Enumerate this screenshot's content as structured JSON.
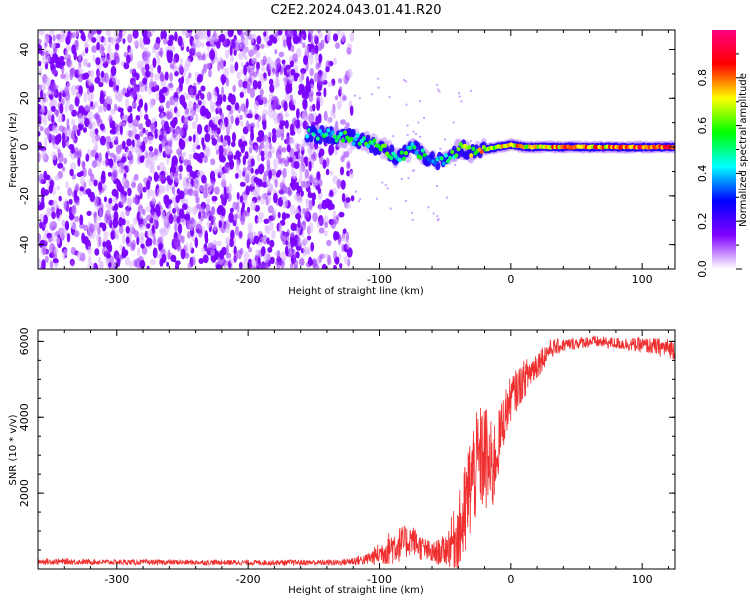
{
  "title": "C2E2.2024.043.01.41.R20",
  "chart_data": [
    {
      "type": "heatmap",
      "xlabel": "Height of straight line (km)",
      "ylabel": "Frequency (Hz)",
      "xlim": [
        -360,
        125
      ],
      "ylim": [
        -50,
        48
      ],
      "x_ticks": [
        -300,
        -200,
        -100,
        0,
        100
      ],
      "x_tick_labels": [
        "-300",
        "-200",
        "-100",
        "0",
        "100"
      ],
      "y_ticks": [
        -40,
        -20,
        0,
        20,
        40
      ],
      "y_tick_labels": [
        "-40",
        "-20",
        "0",
        "20",
        "40"
      ],
      "noise_region_x": [
        -360,
        -120
      ],
      "ridge": {
        "x": [
          -155,
          -140,
          -125,
          -110,
          -95,
          -85,
          -75,
          -65,
          -55,
          -45,
          -38,
          -30,
          -20,
          -10,
          0,
          10,
          30,
          50,
          70,
          90,
          110,
          125
        ],
        "y": [
          5,
          5,
          4,
          2,
          -1,
          -5,
          0,
          -4,
          -6,
          -4,
          0,
          -2,
          -1,
          0,
          1,
          0,
          0,
          0,
          0,
          0,
          0,
          0
        ],
        "amplitude": [
          0.4,
          0.45,
          0.5,
          0.5,
          0.55,
          0.5,
          0.5,
          0.45,
          0.4,
          0.5,
          0.6,
          0.65,
          0.7,
          0.7,
          0.75,
          0.7,
          0.75,
          0.8,
          0.75,
          0.8,
          0.85,
          0.8
        ]
      },
      "colorbar": {
        "label": "Normalized spectral amplitude",
        "range": [
          0,
          1
        ],
        "ticks": [
          0.0,
          0.2,
          0.4,
          0.6,
          0.8
        ],
        "tick_labels": [
          "0.0",
          "0.2",
          "0.4",
          "0.6",
          "0.8"
        ],
        "colors": [
          "#ffffff",
          "#8000ff",
          "#0000ff",
          "#00ffff",
          "#00ff00",
          "#ffff00",
          "#ff0000",
          "#ff0080"
        ]
      }
    },
    {
      "type": "line",
      "xlabel": "Height of straight line (km)",
      "ylabel": "SNR (10 * v/v)",
      "xlim": [
        -360,
        125
      ],
      "ylim": [
        0,
        6300
      ],
      "x_ticks": [
        -300,
        -200,
        -100,
        0,
        100
      ],
      "x_tick_labels": [
        "-300",
        "-200",
        "-100",
        "0",
        "100"
      ],
      "y_ticks": [
        2000,
        4000,
        6000
      ],
      "y_tick_labels": [
        "2000",
        "4000",
        "6000"
      ],
      "series_color": "#f03030",
      "envelope": {
        "x": [
          -360,
          -300,
          -200,
          -130,
          -110,
          -100,
          -90,
          -80,
          -75,
          -70,
          -60,
          -50,
          -45,
          -40,
          -35,
          -30,
          -25,
          -20,
          -15,
          -10,
          -5,
          0,
          10,
          20,
          30,
          40,
          50,
          60,
          80,
          100,
          125
        ],
        "mean": [
          200,
          180,
          170,
          170,
          250,
          400,
          600,
          700,
          800,
          600,
          400,
          500,
          700,
          900,
          1400,
          2400,
          2800,
          3000,
          2500,
          3200,
          4000,
          4500,
          5000,
          5400,
          5800,
          5900,
          5950,
          6000,
          5950,
          5900,
          5800
        ],
        "spread": [
          80,
          70,
          70,
          80,
          150,
          300,
          500,
          450,
          400,
          350,
          300,
          400,
          700,
          1000,
          1400,
          1500,
          1400,
          1500,
          1400,
          900,
          700,
          600,
          500,
          400,
          250,
          180,
          160,
          150,
          160,
          200,
          280
        ]
      }
    }
  ]
}
